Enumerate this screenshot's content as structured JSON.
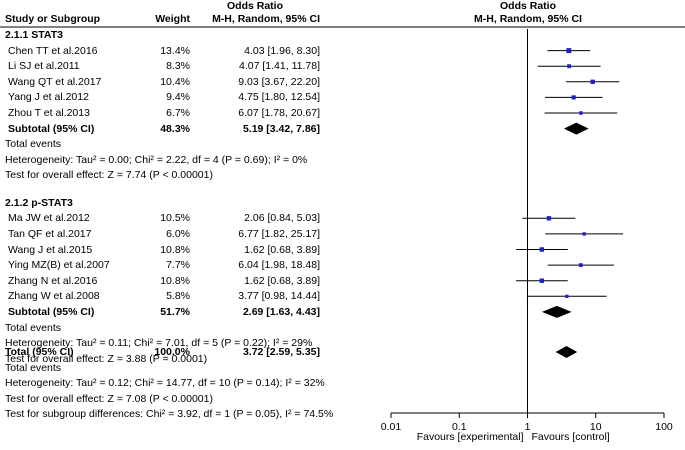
{
  "header": {
    "group_title_left": "Odds Ratio",
    "group_title_right": "Odds Ratio",
    "col_study": "Study or Subgroup",
    "col_weight": "Weight",
    "col_method_left": "M-H, Random, 95% CI",
    "col_method_right": "M-H, Random, 95% CI"
  },
  "groups": [
    {
      "title": "2.1.1 STAT3",
      "studies": [
        {
          "name": "Chen TT et al.2016",
          "weight": "13.4%",
          "ci_text": "4.03 [1.96, 8.30]",
          "or": 4.03,
          "lo": 1.96,
          "hi": 8.3,
          "w": 13.4
        },
        {
          "name": "Li SJ et al.2011",
          "weight": "8.3%",
          "ci_text": "4.07 [1.41, 11.78]",
          "or": 4.07,
          "lo": 1.41,
          "hi": 11.78,
          "w": 8.3
        },
        {
          "name": "Wang QT et al.2017",
          "weight": "10.4%",
          "ci_text": "9.03 [3.67, 22.20]",
          "or": 9.03,
          "lo": 3.67,
          "hi": 22.2,
          "w": 10.4
        },
        {
          "name": "Yang J et al.2012",
          "weight": "9.4%",
          "ci_text": "4.75 [1.80, 12.54]",
          "or": 4.75,
          "lo": 1.8,
          "hi": 12.54,
          "w": 9.4
        },
        {
          "name": "Zhou T et al.2013",
          "weight": "6.7%",
          "ci_text": "6.07 [1.78, 20.67]",
          "or": 6.07,
          "lo": 1.78,
          "hi": 20.67,
          "w": 6.7
        }
      ],
      "subtotal": {
        "label": "Subtotal (95% CI)",
        "weight": "48.3%",
        "ci_text": "5.19 [3.42, 7.86]",
        "or": 5.19,
        "lo": 3.42,
        "hi": 7.86
      },
      "total_events": "Total events",
      "heterogeneity": "Heterogeneity: Tau² = 0.00; Chi² = 2.22, df = 4 (P = 0.69); I² = 0%",
      "overall_effect": "Test for overall effect: Z = 7.74 (P < 0.00001)"
    },
    {
      "title": "2.1.2 p-STAT3",
      "studies": [
        {
          "name": "Ma JW et al.2012",
          "weight": "10.5%",
          "ci_text": "2.06 [0.84, 5.03]",
          "or": 2.06,
          "lo": 0.84,
          "hi": 5.03,
          "w": 10.5
        },
        {
          "name": "Tan QF et al.2017",
          "weight": "6.0%",
          "ci_text": "6.77 [1.82, 25.17]",
          "or": 6.77,
          "lo": 1.82,
          "hi": 25.17,
          "w": 6.0
        },
        {
          "name": "Wang J et al.2015",
          "weight": "10.8%",
          "ci_text": "1.62 [0.68, 3.89]",
          "or": 1.62,
          "lo": 0.68,
          "hi": 3.89,
          "w": 10.8
        },
        {
          "name": "Ying MZ(B) et al.2007",
          "weight": "7.7%",
          "ci_text": "6.04 [1.98, 18.48]",
          "or": 6.04,
          "lo": 1.98,
          "hi": 18.48,
          "w": 7.7
        },
        {
          "name": "Zhang N et al.2016",
          "weight": "10.8%",
          "ci_text": "1.62 [0.68, 3.89]",
          "or": 1.62,
          "lo": 0.68,
          "hi": 3.89,
          "w": 10.8
        },
        {
          "name": "Zhang W et al.2008",
          "weight": "5.8%",
          "ci_text": "3.77 [0.98, 14.44]",
          "or": 3.77,
          "lo": 0.98,
          "hi": 14.44,
          "w": 5.8
        }
      ],
      "subtotal": {
        "label": "Subtotal (95% CI)",
        "weight": "51.7%",
        "ci_text": "2.69 [1.63, 4.43]",
        "or": 2.69,
        "lo": 1.63,
        "hi": 4.43
      },
      "total_events": "Total events",
      "heterogeneity": "Heterogeneity: Tau² = 0.11; Chi² = 7.01, df = 5 (P = 0.22); I² = 29%",
      "overall_effect": "Test for overall effect: Z = 3.88 (P = 0.0001)"
    }
  ],
  "total": {
    "label": "Total (95% CI)",
    "weight": "100.0%",
    "ci_text": "3.72 [2.59, 5.35]",
    "or": 3.72,
    "lo": 2.59,
    "hi": 5.35,
    "total_events": "Total events",
    "heterogeneity": "Heterogeneity: Tau² = 0.12; Chi² = 14.77, df = 10 (P = 0.14); I² = 32%",
    "overall_effect": "Test for overall effect: Z = 7.08 (P < 0.00001)",
    "subgroup_diff": "Test for subgroup differences: Chi² = 3.92, df = 1 (P = 0.05), I² = 74.5%"
  },
  "axis": {
    "ticks": [
      0.01,
      0.1,
      1,
      10,
      100
    ],
    "tick_labels": [
      "0.01",
      "0.1",
      "1",
      "10",
      "100"
    ],
    "favours_left": "Favours [experimental]",
    "favours_right": "Favours [control]"
  },
  "chart_data": {
    "type": "forest",
    "title": "Odds Ratio (M-H, Random, 95% CI)",
    "scale": "log",
    "xlim": [
      0.01,
      100
    ],
    "colors": {
      "study_marker": "#1f1fbf",
      "line": "#000000"
    }
  }
}
